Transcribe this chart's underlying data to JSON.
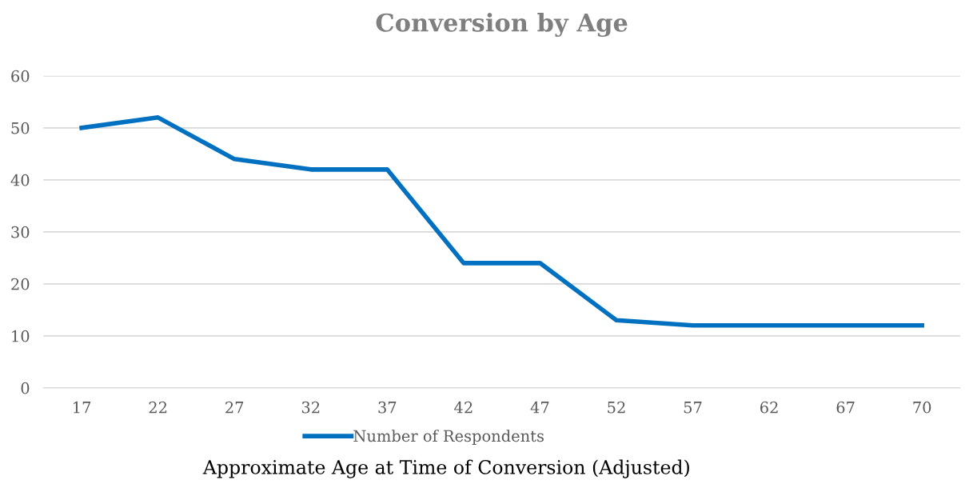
{
  "chart_data": {
    "type": "line",
    "title": "Conversion by Age",
    "xlabel": "Approximate Age at Time of Conversion (Adjusted)",
    "categories": [
      "17",
      "22",
      "27",
      "32",
      "37",
      "42",
      "47",
      "52",
      "57",
      "62",
      "67",
      "70"
    ],
    "series": [
      {
        "name": "Number of Respondents",
        "color": "#0070c0",
        "values": [
          50,
          52,
          44,
          42,
          42,
          24,
          24,
          13,
          12,
          12,
          12,
          12
        ]
      }
    ],
    "ylim": [
      0,
      60
    ],
    "yticks": [
      0,
      10,
      20,
      30,
      40,
      50,
      60
    ],
    "grid": "y",
    "legend": "bottom",
    "marker": "none",
    "line_style": "solid"
  }
}
